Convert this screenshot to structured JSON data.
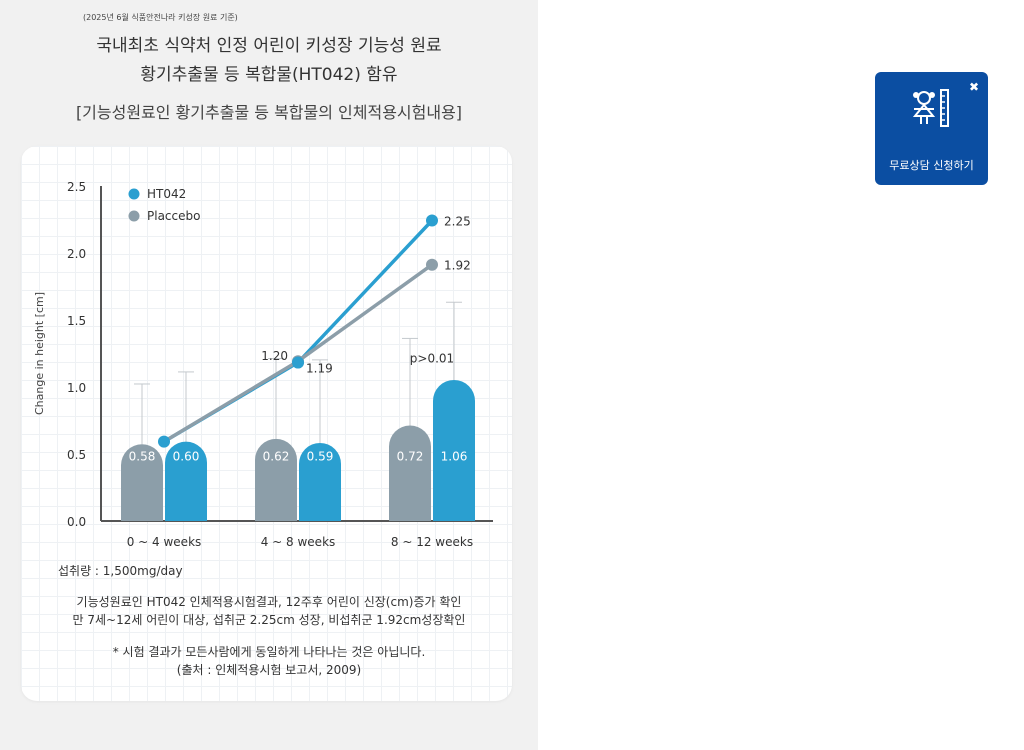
{
  "header": {
    "source_note": "(2025년 6월 식품안전나라 키성장 원료 기준)",
    "headline_line1": "국내최초 식약처 인정 어린이 키성장 기능성 원료",
    "headline_line2": "황기추출물 등 복합물(HT042) 함유",
    "subheadline": "[기능성원료인 황기추출물 등 복합물의 인체적용시험내용]"
  },
  "chart_data": {
    "type": "bar",
    "ylabel": "Change in height [cm]",
    "ylim": [
      0,
      2.5
    ],
    "yticks": [
      "0.0",
      "0.5",
      "1.0",
      "1.5",
      "2.0",
      "2.5"
    ],
    "categories": [
      "0 ~ 4 weeks",
      "4 ~ 8 weeks",
      "8 ~ 12 weeks"
    ],
    "legend_position": "top-left",
    "series": [
      {
        "name": "Placcebo",
        "color": "#8c9ea9",
        "values": [
          0.58,
          0.62,
          0.72
        ],
        "labels": [
          "0.58",
          "0.62",
          "0.72"
        ],
        "error_high": [
          1.03,
          1.22,
          1.37
        ]
      },
      {
        "name": "HT042",
        "color": "#2a9fd0",
        "values": [
          0.6,
          0.59,
          1.06
        ],
        "labels": [
          "0.60",
          "0.59",
          "1.06"
        ],
        "error_high": [
          1.12,
          1.21,
          1.64
        ]
      }
    ],
    "cumulative_lines": [
      {
        "name": "HT042",
        "color": "#2a9fd0",
        "values": [
          0.6,
          1.19,
          2.25
        ],
        "labels": [
          "",
          "1.19",
          "2.25"
        ]
      },
      {
        "name": "Placcebo",
        "color": "#8c9ea9",
        "values": [
          0.6,
          1.2,
          1.92
        ],
        "labels": [
          "",
          "1.20",
          "1.92"
        ]
      }
    ],
    "annotation": "p>0.01"
  },
  "notes": {
    "dose": "섭취량 : 1,500mg/day",
    "result_line1": "기능성원료인 HT042 인체적용시험결과, 12주후 어린이 신장(cm)증가 확인",
    "result_line2": "만 7세~12세 어린이 대상, 섭취군 2.25cm 성장, 비섭취군 1.92cm성장확인",
    "disclaimer_line1": "* 시험 결과가 모든사람에게 동일하게 나타나는 것은 아닙니다.",
    "disclaimer_line2": "(출처 : 인체적용시험 보고서, 2009)"
  },
  "consult_widget": {
    "label": "무료상담 신청하기",
    "close_symbol": "✖",
    "icon": "child-height-icon",
    "background": "#0b4ea2"
  }
}
